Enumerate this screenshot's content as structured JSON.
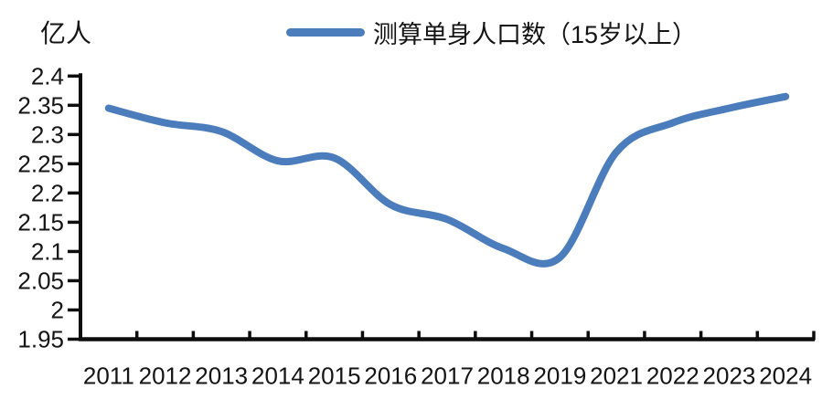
{
  "header": {
    "y_axis_unit": "亿人"
  },
  "legend": {
    "label": "测算单身人口数（15岁以上）"
  },
  "chart_data": {
    "type": "line",
    "smooth": true,
    "title": "",
    "ylabel": "亿人",
    "xlabel": "",
    "categories": [
      "2011",
      "2012",
      "2013",
      "2014",
      "2015",
      "2016",
      "2017",
      "2018",
      "2019",
      "2021",
      "2022",
      "2023",
      "2024"
    ],
    "series": [
      {
        "name": "测算单身人口数（15岁以上）",
        "values": [
          2.345,
          2.32,
          2.305,
          2.255,
          2.26,
          2.18,
          2.155,
          2.105,
          2.09,
          2.27,
          2.32,
          2.345,
          2.365
        ]
      }
    ],
    "ylim": [
      1.95,
      2.4
    ],
    "ytick_step": 0.05,
    "ytick_labels": [
      "1.95",
      "2",
      "2.05",
      "2.1",
      "2.15",
      "2.2",
      "2.25",
      "2.3",
      "2.35",
      "2.4"
    ],
    "grid": false,
    "legend_position": "top",
    "colors": {
      "line": "#4b7dbc",
      "axis": "#0d0d0d",
      "text": "#141414",
      "background": "#ffffff"
    }
  }
}
